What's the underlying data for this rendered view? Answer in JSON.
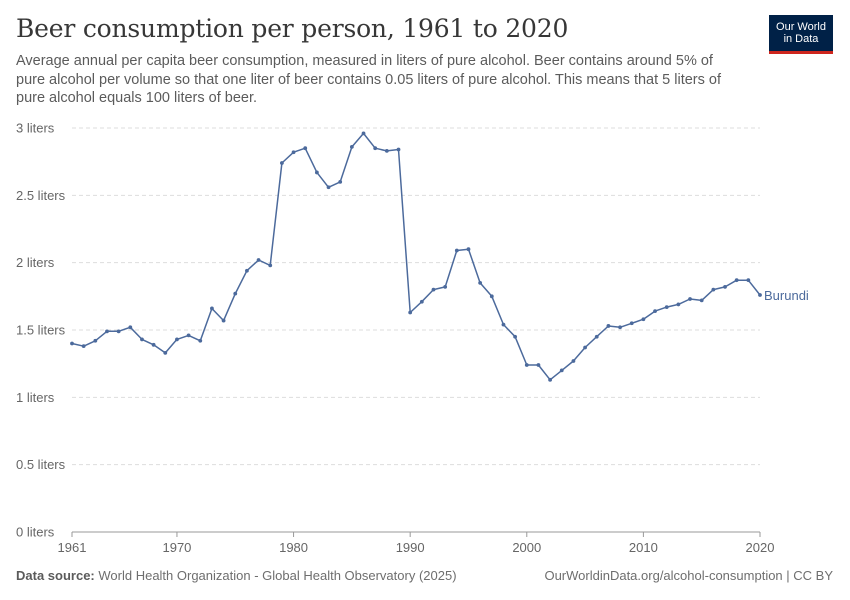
{
  "header": {
    "title": "Beer consumption per person, 1961 to 2020",
    "subtitle": "Average annual per capita beer consumption, measured in liters of pure alcohol. Beer contains around 5% of pure alcohol per volume so that one liter of beer contains 0.05 liters of pure alcohol. This means that 5 liters of pure alcohol equals 100 liters of beer."
  },
  "logo": {
    "line1": "Our World",
    "line2": "in Data",
    "bg": "#002147",
    "accent": "#ce261e"
  },
  "footer": {
    "source_label": "Data source:",
    "source_text": "World Health Organization - Global Health Observatory (2025)",
    "credit": "OurWorldinData.org/alcohol-consumption | CC BY"
  },
  "chart_data": {
    "type": "line",
    "title": "Beer consumption per person, 1961 to 2020",
    "xlim": [
      1961,
      2020
    ],
    "ylim": [
      0,
      3
    ],
    "x_ticks": [
      1961,
      1970,
      1980,
      1990,
      2000,
      2010,
      2020
    ],
    "y_ticks": [
      {
        "value": 0,
        "label": "0 liters"
      },
      {
        "value": 0.5,
        "label": "0.5 liters"
      },
      {
        "value": 1,
        "label": "1 liters"
      },
      {
        "value": 1.5,
        "label": "1.5 liters"
      },
      {
        "value": 2,
        "label": "2 liters"
      },
      {
        "value": 2.5,
        "label": "2.5 liters"
      },
      {
        "value": 3,
        "label": "3 liters"
      }
    ],
    "grid": true,
    "series": [
      {
        "name": "Burundi",
        "color": "#4c6a9c",
        "x": [
          1961,
          1962,
          1963,
          1964,
          1965,
          1966,
          1967,
          1968,
          1969,
          1970,
          1971,
          1972,
          1973,
          1974,
          1975,
          1976,
          1977,
          1978,
          1979,
          1980,
          1981,
          1982,
          1983,
          1984,
          1985,
          1986,
          1987,
          1988,
          1989,
          1990,
          1991,
          1992,
          1993,
          1994,
          1995,
          1996,
          1997,
          1998,
          1999,
          2000,
          2001,
          2002,
          2003,
          2004,
          2005,
          2006,
          2007,
          2008,
          2009,
          2010,
          2011,
          2012,
          2013,
          2014,
          2015,
          2016,
          2017,
          2018,
          2019,
          2020
        ],
        "values": [
          1.4,
          1.38,
          1.42,
          1.49,
          1.49,
          1.52,
          1.43,
          1.39,
          1.33,
          1.43,
          1.46,
          1.42,
          1.66,
          1.57,
          1.77,
          1.94,
          2.02,
          1.98,
          2.74,
          2.82,
          2.85,
          2.67,
          2.56,
          2.6,
          2.86,
          2.96,
          2.85,
          2.83,
          2.84,
          1.63,
          1.71,
          1.8,
          1.82,
          2.09,
          2.1,
          1.85,
          1.75,
          1.54,
          1.45,
          1.24,
          1.24,
          1.13,
          1.2,
          1.27,
          1.37,
          1.45,
          1.53,
          1.52,
          1.55,
          1.58,
          1.64,
          1.67,
          1.69,
          1.73,
          1.72,
          1.8,
          1.82,
          1.87,
          1.87,
          1.76
        ]
      }
    ]
  }
}
